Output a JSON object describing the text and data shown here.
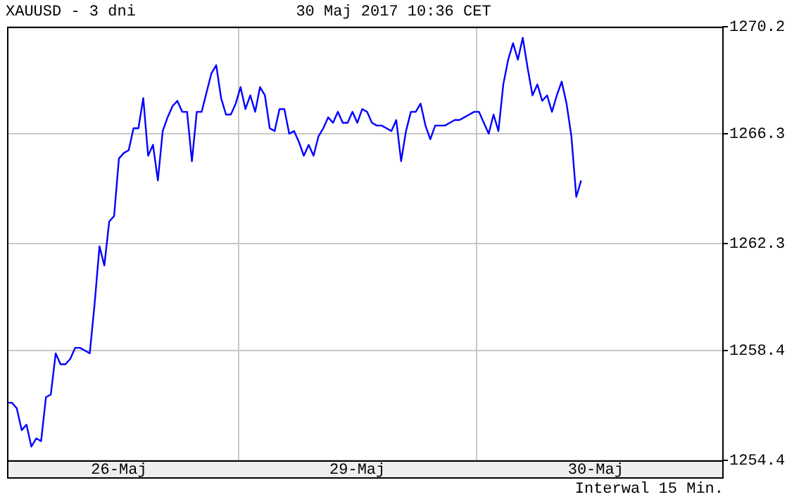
{
  "chart_data": {
    "type": "line",
    "title": "XAUUSD - 3 dni",
    "subtitle": "30 Maj 2017 10:36 CET",
    "annotations": [
      "Interwal 15 Min."
    ],
    "color": "#0000ff",
    "grid": "y",
    "ylim": [
      1254.4,
      1270.2
    ],
    "yticks": [
      1254.4,
      1258.4,
      1262.3,
      1266.3,
      1270.2
    ],
    "categories": [
      null,
      null,
      null,
      null,
      null,
      null,
      null,
      null,
      null,
      null,
      null,
      null,
      null,
      null,
      null,
      null,
      null,
      null,
      null,
      null,
      null,
      null,
      null,
      "26-Maj",
      null,
      null,
      null,
      null,
      null,
      null,
      null,
      null,
      null,
      null,
      null,
      null,
      null,
      null,
      null,
      null,
      null,
      null,
      null,
      null,
      null,
      null,
      null,
      null,
      null,
      null,
      null,
      null,
      null,
      null,
      null,
      null,
      null,
      null,
      null,
      null,
      null,
      null,
      null,
      null,
      null,
      null,
      null,
      null,
      null,
      null,
      null,
      null,
      "29-Maj",
      null,
      null,
      null,
      null,
      null,
      null,
      null,
      null,
      null,
      null,
      null,
      null,
      null,
      null,
      null,
      null,
      null,
      null,
      null,
      null,
      null,
      null,
      null,
      null,
      null,
      null,
      null,
      null,
      null,
      null,
      null,
      null,
      null,
      null,
      null,
      null,
      null,
      null,
      null,
      null,
      null,
      null,
      null,
      null,
      null,
      null,
      null,
      null,
      "30-Maj",
      null,
      null,
      null,
      null,
      null,
      null,
      null,
      null,
      null,
      null,
      null,
      null,
      null,
      null,
      null,
      null,
      null,
      null,
      null,
      null,
      null,
      null,
      null,
      null,
      null,
      null
    ],
    "values": [
      1256.5,
      1256.5,
      1256.3,
      1255.5,
      1255.7,
      1254.9,
      1255.2,
      1255.1,
      1256.7,
      1256.8,
      1258.3,
      1257.9,
      1257.9,
      1258.1,
      1258.5,
      1258.5,
      1258.4,
      1258.3,
      1260.1,
      1262.2,
      1261.5,
      1263.1,
      1263.3,
      1265.4,
      1265.6,
      1265.7,
      1266.5,
      1266.5,
      1267.6,
      1265.5,
      1265.9,
      1264.6,
      1266.4,
      1266.9,
      1267.3,
      1267.5,
      1267.1,
      1267.1,
      1265.3,
      1267.1,
      1267.1,
      1267.8,
      1268.5,
      1268.8,
      1267.6,
      1267.0,
      1267.0,
      1267.4,
      1268.0,
      1267.2,
      1267.7,
      1267.1,
      1268.0,
      1267.7,
      1266.5,
      1266.4,
      1267.2,
      1267.2,
      1266.3,
      1266.4,
      1266.0,
      1265.5,
      1265.9,
      1265.5,
      1266.2,
      1266.5,
      1266.9,
      1266.7,
      1267.1,
      1266.7,
      1266.7,
      1267.1,
      1266.7,
      1267.2,
      1267.1,
      1266.7,
      1266.6,
      1266.6,
      1266.5,
      1266.4,
      1266.8,
      1265.3,
      1266.4,
      1267.1,
      1267.1,
      1267.4,
      1266.6,
      1266.1,
      1266.6,
      1266.6,
      1266.6,
      1266.7,
      1266.8,
      1266.8,
      1266.9,
      1267.0,
      1267.1,
      1267.1,
      1266.7,
      1266.3,
      1267.0,
      1266.4,
      1268.1,
      1269.0,
      1269.6,
      1269.0,
      1269.8,
      1268.7,
      1267.7,
      1268.1,
      1267.5,
      1267.7,
      1267.1,
      1267.7,
      1268.2,
      1267.4,
      1266.2,
      1264.0,
      1264.6,
      null,
      null,
      null,
      null,
      null,
      null,
      null,
      null,
      null,
      null,
      null,
      null,
      null,
      null,
      null,
      null,
      null,
      null,
      null,
      null,
      null,
      null,
      null,
      null,
      null,
      null,
      null,
      null,
      null
    ]
  }
}
